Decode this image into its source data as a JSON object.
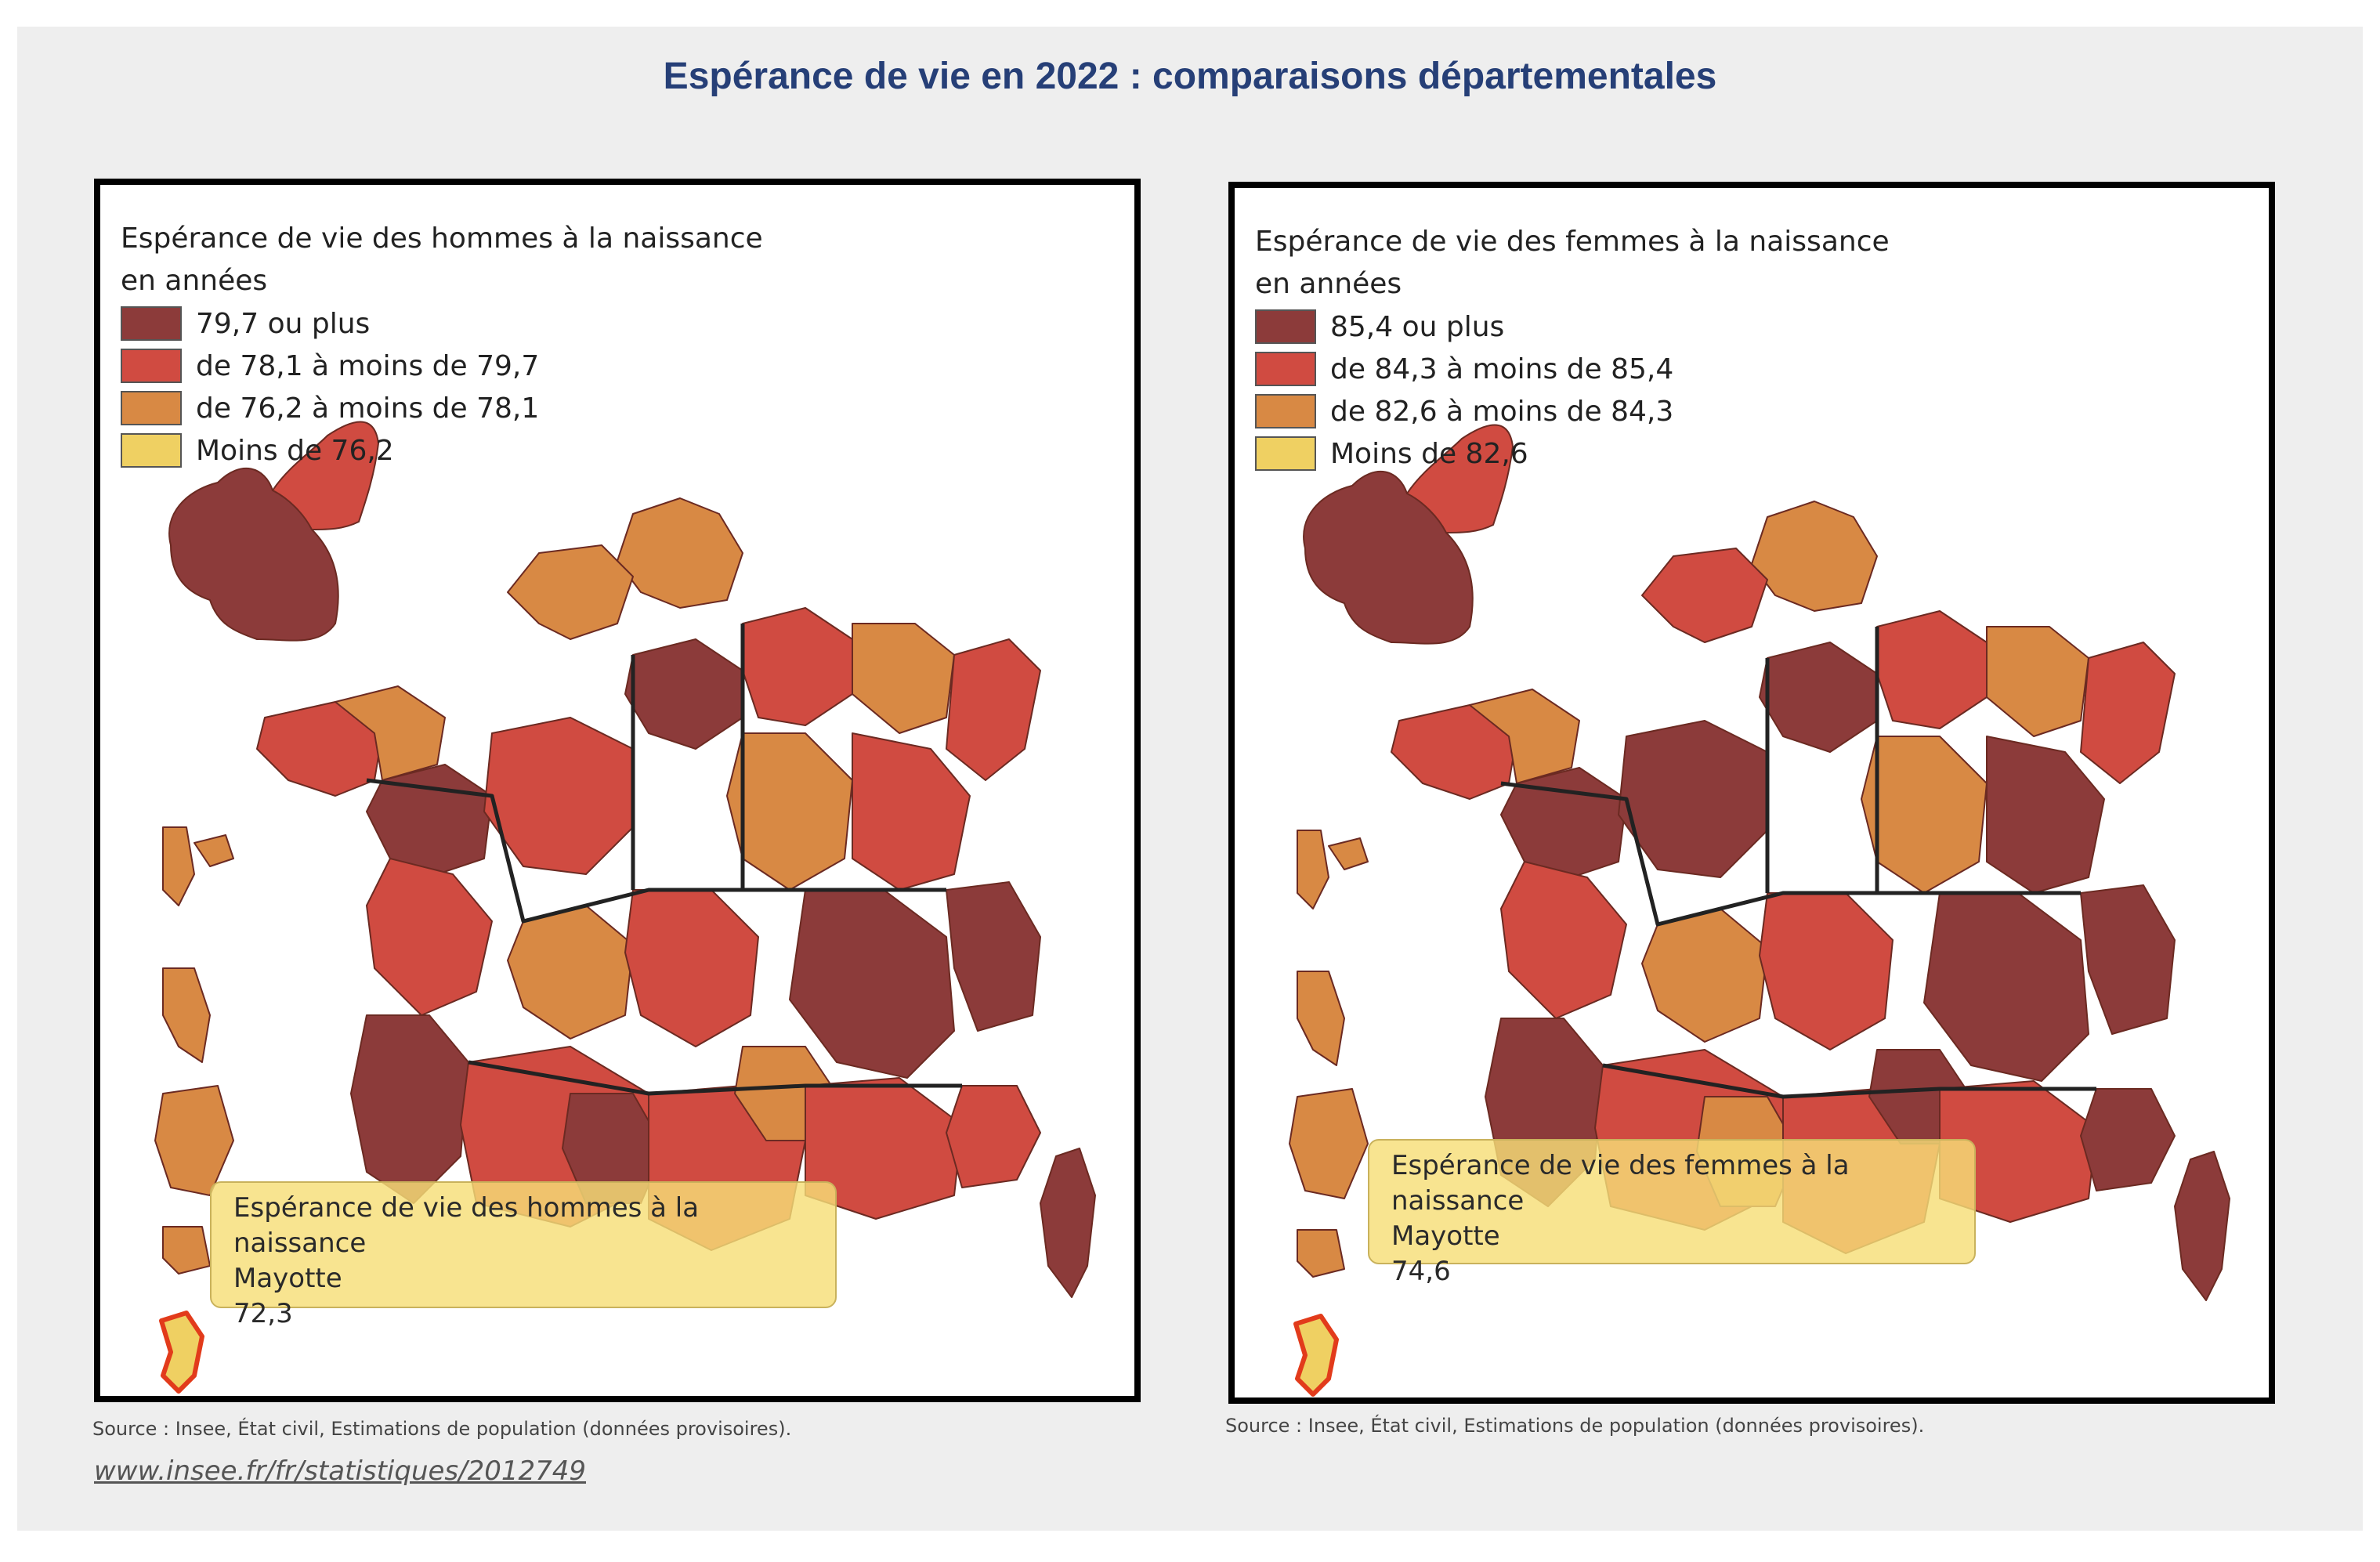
{
  "title": "Espérance de vie en 2022 : comparaisons départementales",
  "colors": {
    "c1": "#8c3b3a",
    "c2": "#d04b41",
    "c3": "#d88944",
    "c4": "#efd062"
  },
  "maps": [
    {
      "legend_title_1": "Espérance de vie des hommes à la naissance",
      "legend_title_2": "en années",
      "legend_items": [
        {
          "label": "79,7 ou plus",
          "color": "#8c3b3a"
        },
        {
          "label": "de 78,1 à moins de 79,7",
          "color": "#d04b41"
        },
        {
          "label": "de 76,2 à moins de 78,1",
          "color": "#d88944"
        },
        {
          "label": "Moins de 76,2",
          "color": "#efd062"
        }
      ],
      "tooltip": {
        "line1": "Espérance de vie des hommes à la naissance",
        "line2": "Mayotte",
        "line3": "72,3"
      },
      "source": "Source : Insee, État civil, Estimations de population (données provisoires)."
    },
    {
      "legend_title_1": "Espérance de vie des femmes à la naissance",
      "legend_title_2": "en années",
      "legend_items": [
        {
          "label": "85,4 ou plus",
          "color": "#8c3b3a"
        },
        {
          "label": "de 84,3 à moins de 85,4",
          "color": "#d04b41"
        },
        {
          "label": "de 82,6 à moins de 84,3",
          "color": "#d88944"
        },
        {
          "label": "Moins de 82,6",
          "color": "#efd062"
        }
      ],
      "tooltip": {
        "line1": "Espérance de vie des femmes à la naissance",
        "line2": "Mayotte",
        "line3": "74,6"
      },
      "source": "Source : Insee, État civil, Estimations de population (données provisoires)."
    }
  ],
  "link": "www.insee.fr/fr/statistiques/2012749"
}
